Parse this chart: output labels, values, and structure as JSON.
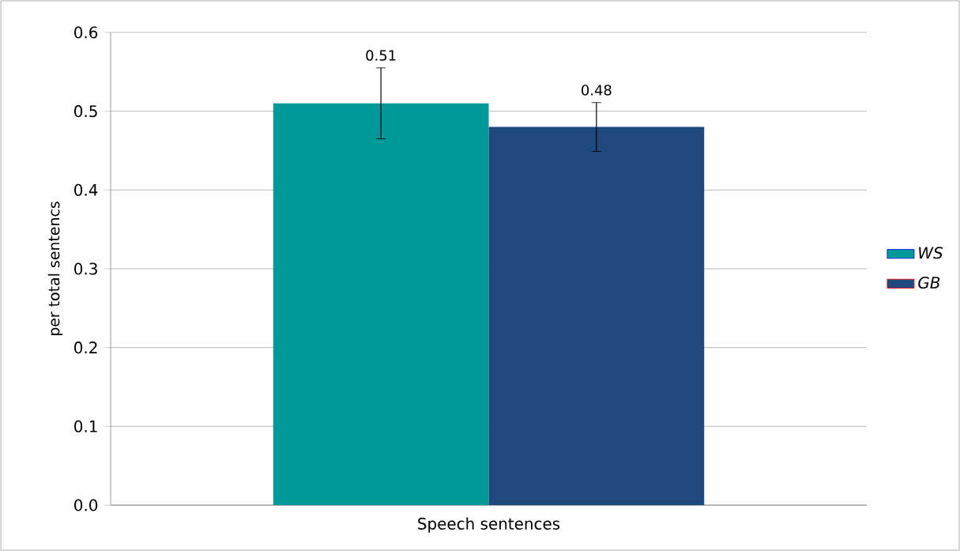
{
  "chart_data": {
    "type": "bar",
    "ylabel": "per total sentencs",
    "categories": [
      "Speech sentences"
    ],
    "series": [
      {
        "name": "WS",
        "color": "#009999",
        "values": [
          0.51
        ],
        "errors": [
          0.045
        ]
      },
      {
        "name": "GB",
        "color": "#1f497d",
        "values": [
          0.48
        ],
        "errors": [
          0.031
        ]
      }
    ],
    "ylim": [
      0,
      0.6
    ],
    "yticks": [
      {
        "value": 0,
        "label": "0.0"
      },
      0.1,
      0.2,
      0.3,
      0.4,
      0.5,
      0.6
    ],
    "grid": "y",
    "legend": "right",
    "data_labels": true
  }
}
